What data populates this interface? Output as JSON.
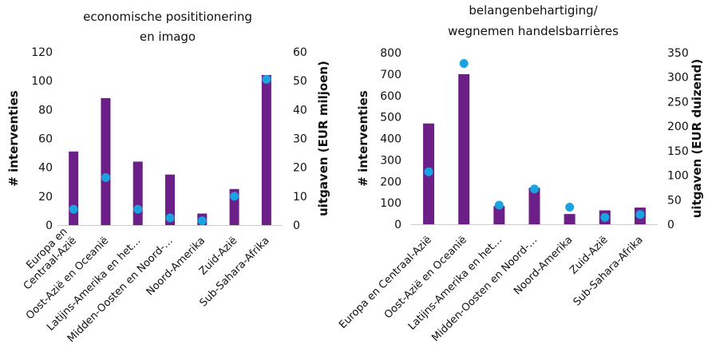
{
  "colors": {
    "bar": "#6b1f87",
    "dot": "#1aa3e0"
  },
  "chart_data": [
    {
      "type": "bar",
      "title_lines": [
        "economische posititionering",
        "en imago"
      ],
      "categories": [
        "Europa en Centraal-Azië",
        "Oost-Azië en Oceanië",
        "Latijns-Amerika en het…",
        "Midden-Oosten en Noord-…",
        "Noord-Amerika",
        "Zuid-Azië",
        "Sub-Sahara-Afrika"
      ],
      "category_label_lines": [
        [
          "Europa en",
          "Centraal-Azië"
        ],
        [
          "Oost-Azië en Oceanië"
        ],
        [
          "Latijns-Amerika en het…"
        ],
        [
          "Midden-Oosten en Noord-…"
        ],
        [
          "Noord-Amerika"
        ],
        [
          "Zuid-Azië"
        ],
        [
          "Sub-Sahara-Afrika"
        ]
      ],
      "ylabel": "# interventies",
      "y2label": "uitgaven (EUR miljoen)",
      "ylim": [
        0,
        120
      ],
      "yticks": [
        0,
        20,
        40,
        60,
        80,
        100,
        120
      ],
      "y2lim": [
        0,
        60
      ],
      "y2ticks": [
        0,
        10,
        20,
        30,
        40,
        50,
        60
      ],
      "series": [
        {
          "name": "# interventies",
          "type": "bar",
          "axis": "left",
          "values": [
            51,
            88,
            44,
            35,
            8,
            25,
            104
          ]
        },
        {
          "name": "uitgaven",
          "type": "scatter",
          "axis": "right",
          "values": [
            5.5,
            16.5,
            5.5,
            2.5,
            1.5,
            10,
            50.5
          ]
        }
      ],
      "grid": false
    },
    {
      "type": "bar",
      "title_lines": [
        "belangenbehartiging/",
        "wegnemen handelsbarrières"
      ],
      "categories": [
        "Europa en Centraal-Azië",
        "Oost-Azië en Oceanië",
        "Latijns-Amerika en het…",
        "Midden-Oosten en Noord-…",
        "Noord-Amerika",
        "Zuid-Azië",
        "Sub-Sahara-Afrika"
      ],
      "category_label_lines": [
        [
          "Europa en Centraal-Azië"
        ],
        [
          "Oost-Azië en Oceanië"
        ],
        [
          "Latijns-Amerika en het…"
        ],
        [
          "Midden-Oosten en Noord-…"
        ],
        [
          "Noord-Amerika"
        ],
        [
          "Zuid-Azië"
        ],
        [
          "Sub-Sahara-Afrika"
        ]
      ],
      "ylabel": "# interventies",
      "y2label": "uitgaven (EUR duizend)",
      "ylim": [
        0,
        800
      ],
      "yticks": [
        0,
        100,
        200,
        300,
        400,
        500,
        600,
        700,
        800
      ],
      "y2lim": [
        0,
        350
      ],
      "y2ticks": [
        0,
        50,
        100,
        150,
        200,
        250,
        300,
        350
      ],
      "series": [
        {
          "name": "# interventies",
          "type": "bar",
          "axis": "left",
          "values": [
            470,
            700,
            85,
            170,
            48,
            65,
            78
          ]
        },
        {
          "name": "uitgaven",
          "type": "scatter",
          "axis": "right",
          "values": [
            107,
            328,
            39,
            72,
            35,
            14,
            20
          ]
        }
      ],
      "grid": false
    }
  ]
}
